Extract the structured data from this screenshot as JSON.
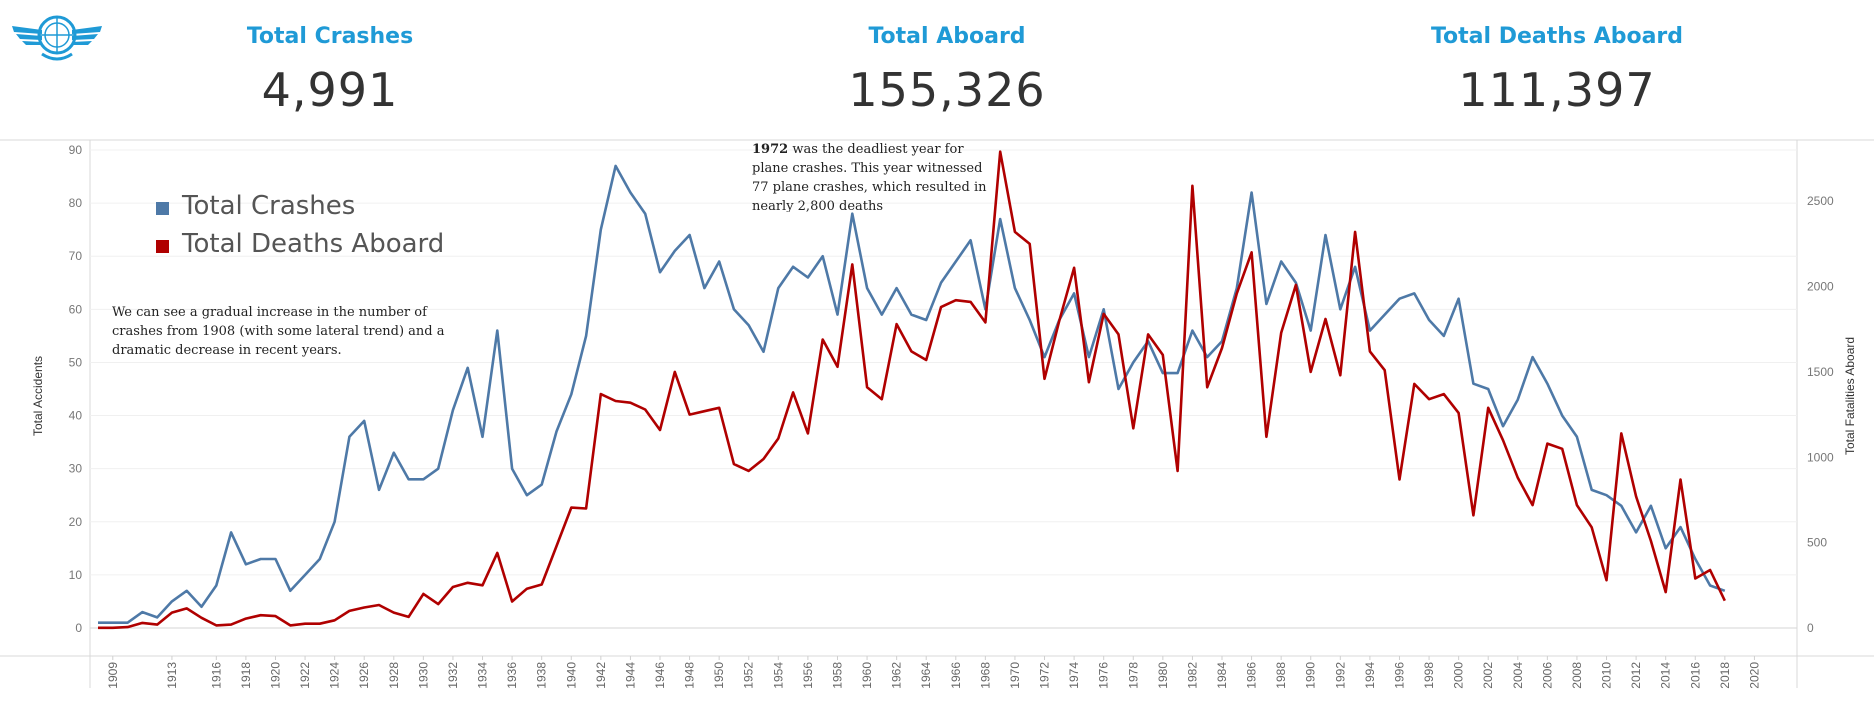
{
  "kpis": [
    {
      "title": "Total Crashes",
      "value": "4,991"
    },
    {
      "title": "Total Aboard",
      "value": "155,326"
    },
    {
      "title": "Total Deaths Aboard",
      "value": "111,397"
    }
  ],
  "annotations": {
    "left_note": "We can see a gradual increase in the number of crashes from 1908 (with some lateral trend) and a dramatic decrease in recent years.",
    "peak_note_bold": "1972",
    "peak_note_rest": " was the deadliest year for plane crashes. This year witnessed 77 plane crashes, which resulted in nearly 2,800 deaths"
  },
  "colors": {
    "crashes": "#4e79a7",
    "deaths": "#b00000",
    "kpi_title": "#1f9ad6",
    "kpi_value": "#333333"
  },
  "chart_data": {
    "type": "line",
    "x_start": 1908,
    "x_end": 2022,
    "x_tick_labels": [
      "1909",
      "1913",
      "1916",
      "1918",
      "1920",
      "1922",
      "1924",
      "1926",
      "1928",
      "1930",
      "1932",
      "1934",
      "1936",
      "1938",
      "1940",
      "1942",
      "1944",
      "1946",
      "1948",
      "1950",
      "1952",
      "1954",
      "1956",
      "1958",
      "1960",
      "1962",
      "1964",
      "1966",
      "1968",
      "1970",
      "1972",
      "1974",
      "1976",
      "1978",
      "1980",
      "1982",
      "1984",
      "1986",
      "1988",
      "1990",
      "1992",
      "1994",
      "1996",
      "1998",
      "2000",
      "2002",
      "2004",
      "2006",
      "2008",
      "2010",
      "2012",
      "2014",
      "2016",
      "2018",
      "2020"
    ],
    "ylabel_left": "Total Accidents",
    "ylabel_right": "Total Fatalities Aboard",
    "ylim_left": [
      0,
      90
    ],
    "ylim_right": [
      0,
      2800
    ],
    "yticks_left": [
      0,
      10,
      20,
      30,
      40,
      50,
      60,
      70,
      80,
      90
    ],
    "yticks_right": [
      0,
      500,
      1000,
      1500,
      2000,
      2500
    ],
    "legend_position": "top-left",
    "grid": true,
    "series": [
      {
        "name": "Total Crashes",
        "axis": "left",
        "values": [
          1,
          1,
          1,
          3,
          2,
          5,
          7,
          4,
          8,
          18,
          12,
          13,
          13,
          7,
          10,
          13,
          20,
          36,
          39,
          26,
          33,
          28,
          28,
          30,
          41,
          49,
          36,
          56,
          30,
          25,
          27,
          37,
          44,
          55,
          75,
          87,
          82,
          78,
          67,
          71,
          74,
          64,
          69,
          60,
          57,
          52,
          64,
          68,
          66,
          70,
          59,
          78,
          64,
          59,
          64,
          59,
          58,
          65,
          69,
          73,
          60,
          77,
          64,
          58,
          51,
          58,
          63,
          51,
          60,
          45,
          50,
          54,
          48,
          48,
          56,
          51,
          54,
          64,
          82,
          61,
          69,
          65,
          56,
          74,
          60,
          68,
          56,
          59,
          62,
          63,
          58,
          55,
          62,
          46,
          45,
          38,
          43,
          51,
          46,
          40,
          36,
          26,
          25,
          23,
          18,
          23,
          15,
          19,
          13,
          8,
          7
        ]
      },
      {
        "name": "Total Deaths Aboard",
        "axis": "right",
        "values": [
          1,
          1,
          5,
          30,
          20,
          90,
          115,
          60,
          15,
          20,
          55,
          75,
          70,
          15,
          25,
          25,
          45,
          100,
          120,
          135,
          90,
          65,
          200,
          140,
          240,
          265,
          250,
          440,
          155,
          230,
          255,
          480,
          705,
          700,
          1370,
          1330,
          1320,
          1280,
          1160,
          1500,
          1250,
          1270,
          1290,
          960,
          920,
          990,
          1110,
          1380,
          1140,
          1690,
          1530,
          2130,
          1410,
          1340,
          1780,
          1620,
          1570,
          1880,
          1920,
          1910,
          1790,
          2790,
          2320,
          2250,
          1460,
          1800,
          2110,
          1440,
          1840,
          1720,
          1170,
          1720,
          1600,
          920,
          2590,
          1410,
          1640,
          1960,
          2200,
          1120,
          1730,
          2010,
          1500,
          1810,
          1480,
          2320,
          1620,
          1510,
          870,
          1430,
          1340,
          1370,
          1260,
          660,
          1290,
          1100,
          880,
          720,
          1080,
          1050,
          720,
          590,
          280,
          1140,
          770,
          510,
          210,
          870,
          290,
          340,
          160
        ]
      }
    ]
  }
}
